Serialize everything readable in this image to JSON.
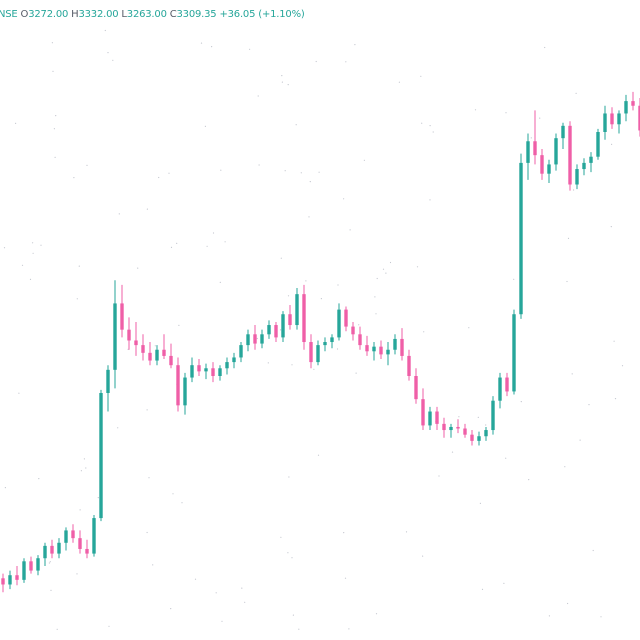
{
  "header": {
    "symbol": "NSE",
    "open_label": "O",
    "open": "3272.00",
    "high_label": "H",
    "high": "3332.00",
    "low_label": "L",
    "low": "3263.00",
    "close_label": "C",
    "close": "3309.35",
    "change": "+36.05 (+1.10%)"
  },
  "colors": {
    "up": "#26a69a",
    "down": "#ef5fa7",
    "dot": "#c4c7cf",
    "background": "#ffffff"
  },
  "chart_data": {
    "type": "candlestick",
    "title": "",
    "xlabel": "",
    "ylabel": "",
    "grid": false,
    "ylim": [
      2470,
      3260
    ],
    "series": [
      {
        "name": "",
        "ohlc": [
          [
            2524,
            2530,
            2506,
            2516
          ],
          [
            2516,
            2534,
            2510,
            2528
          ],
          [
            2528,
            2540,
            2515,
            2522
          ],
          [
            2522,
            2550,
            2518,
            2546
          ],
          [
            2546,
            2552,
            2530,
            2534
          ],
          [
            2534,
            2554,
            2528,
            2550
          ],
          [
            2550,
            2570,
            2540,
            2566
          ],
          [
            2566,
            2574,
            2550,
            2556
          ],
          [
            2556,
            2576,
            2550,
            2570
          ],
          [
            2570,
            2590,
            2560,
            2586
          ],
          [
            2586,
            2594,
            2570,
            2576
          ],
          [
            2576,
            2586,
            2556,
            2562
          ],
          [
            2562,
            2574,
            2550,
            2556
          ],
          [
            2556,
            2606,
            2552,
            2602
          ],
          [
            2602,
            2768,
            2598,
            2764
          ],
          [
            2764,
            2800,
            2740,
            2794
          ],
          [
            2794,
            2910,
            2770,
            2880
          ],
          [
            2880,
            2904,
            2836,
            2846
          ],
          [
            2846,
            2862,
            2820,
            2832
          ],
          [
            2832,
            2856,
            2812,
            2826
          ],
          [
            2826,
            2840,
            2806,
            2816
          ],
          [
            2816,
            2830,
            2800,
            2806
          ],
          [
            2806,
            2826,
            2800,
            2820
          ],
          [
            2820,
            2840,
            2808,
            2812
          ],
          [
            2812,
            2828,
            2796,
            2800
          ],
          [
            2800,
            2810,
            2740,
            2748
          ],
          [
            2748,
            2790,
            2736,
            2784
          ],
          [
            2784,
            2810,
            2778,
            2800
          ],
          [
            2800,
            2808,
            2786,
            2792
          ],
          [
            2792,
            2802,
            2782,
            2796
          ],
          [
            2796,
            2804,
            2778,
            2786
          ],
          [
            2786,
            2800,
            2780,
            2796
          ],
          [
            2796,
            2810,
            2788,
            2804
          ],
          [
            2804,
            2816,
            2796,
            2810
          ],
          [
            2810,
            2830,
            2804,
            2826
          ],
          [
            2826,
            2846,
            2818,
            2840
          ],
          [
            2840,
            2852,
            2820,
            2828
          ],
          [
            2828,
            2846,
            2822,
            2840
          ],
          [
            2840,
            2858,
            2834,
            2852
          ],
          [
            2852,
            2856,
            2830,
            2836
          ],
          [
            2836,
            2870,
            2830,
            2866
          ],
          [
            2866,
            2878,
            2846,
            2852
          ],
          [
            2852,
            2900,
            2846,
            2892
          ],
          [
            2892,
            2904,
            2820,
            2830
          ],
          [
            2830,
            2840,
            2796,
            2804
          ],
          [
            2804,
            2832,
            2800,
            2826
          ],
          [
            2826,
            2836,
            2818,
            2830
          ],
          [
            2830,
            2840,
            2822,
            2836
          ],
          [
            2836,
            2880,
            2832,
            2872
          ],
          [
            2872,
            2876,
            2844,
            2850
          ],
          [
            2850,
            2856,
            2832,
            2840
          ],
          [
            2840,
            2850,
            2820,
            2826
          ],
          [
            2826,
            2838,
            2812,
            2818
          ],
          [
            2818,
            2830,
            2806,
            2824
          ],
          [
            2824,
            2832,
            2808,
            2814
          ],
          [
            2814,
            2830,
            2800,
            2820
          ],
          [
            2820,
            2840,
            2814,
            2834
          ],
          [
            2834,
            2848,
            2806,
            2812
          ],
          [
            2812,
            2820,
            2780,
            2786
          ],
          [
            2786,
            2796,
            2750,
            2756
          ],
          [
            2756,
            2770,
            2716,
            2722
          ],
          [
            2722,
            2746,
            2716,
            2740
          ],
          [
            2740,
            2746,
            2716,
            2724
          ],
          [
            2724,
            2732,
            2706,
            2716
          ],
          [
            2716,
            2724,
            2706,
            2720
          ],
          [
            2720,
            2730,
            2712,
            2718
          ],
          [
            2718,
            2724,
            2706,
            2710
          ],
          [
            2710,
            2716,
            2696,
            2702
          ],
          [
            2702,
            2714,
            2696,
            2708
          ],
          [
            2708,
            2720,
            2702,
            2716
          ],
          [
            2716,
            2760,
            2710,
            2754
          ],
          [
            2754,
            2790,
            2744,
            2784
          ],
          [
            2784,
            2790,
            2760,
            2766
          ],
          [
            2766,
            2872,
            2762,
            2866
          ],
          [
            2866,
            3074,
            2860,
            3062
          ],
          [
            3062,
            3100,
            3040,
            3090
          ],
          [
            3090,
            3130,
            3060,
            3072
          ],
          [
            3072,
            3080,
            3040,
            3048
          ],
          [
            3048,
            3066,
            3036,
            3060
          ],
          [
            3060,
            3100,
            3052,
            3094
          ],
          [
            3094,
            3114,
            3080,
            3110
          ],
          [
            3110,
            3116,
            3026,
            3034
          ],
          [
            3034,
            3060,
            3028,
            3054
          ],
          [
            3054,
            3068,
            3046,
            3062
          ],
          [
            3062,
            3076,
            3050,
            3070
          ],
          [
            3070,
            3106,
            3066,
            3102
          ],
          [
            3102,
            3136,
            3092,
            3126
          ],
          [
            3126,
            3134,
            3106,
            3112
          ],
          [
            3112,
            3130,
            3100,
            3126
          ],
          [
            3126,
            3150,
            3116,
            3142
          ],
          [
            3142,
            3154,
            3130,
            3136
          ],
          [
            3136,
            3146,
            3096,
            3104
          ]
        ]
      }
    ]
  }
}
